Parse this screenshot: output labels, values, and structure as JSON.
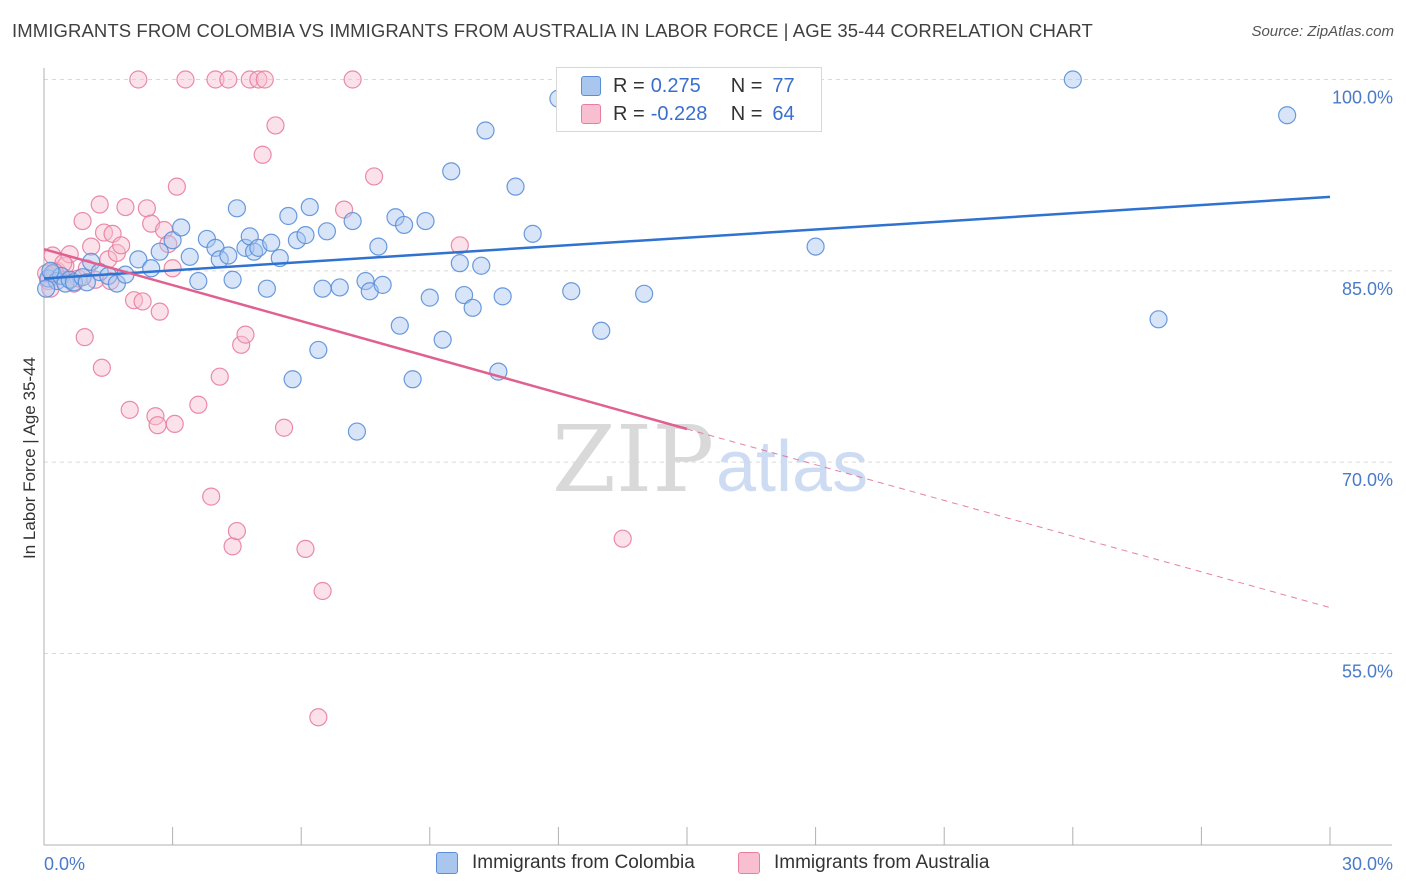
{
  "title": "IMMIGRANTS FROM COLOMBIA VS IMMIGRANTS FROM AUSTRALIA IN LABOR FORCE | AGE 35-44 CORRELATION CHART",
  "source": "Source: ZipAtlas.com",
  "watermark": {
    "zip": "ZIP",
    "atlas": "atlas"
  },
  "legend": {
    "rows": [
      {
        "r_label": "R =",
        "r_value": "0.275",
        "n_label": "N =",
        "n_value": "77"
      },
      {
        "r_label": "R =",
        "r_value": "-0.228",
        "n_label": "N =",
        "n_value": "64"
      }
    ]
  },
  "bottom_legend": [
    "Immigrants from Colombia",
    "Immigrants from Australia"
  ],
  "colors": {
    "blue_fill": "#a9c6ef",
    "blue_stroke": "#5a8fd8",
    "blue_line": "#2f72d0",
    "pink_fill": "#f7bfd0",
    "pink_stroke": "#e87ea0",
    "pink_line": "#e06090",
    "tick_text": "#4a7ac8",
    "grid": "#d9d9d9"
  },
  "chart_data": {
    "type": "scatter",
    "title": "IMMIGRANTS FROM COLOMBIA VS IMMIGRANTS FROM AUSTRALIA IN LABOR FORCE | AGE 35-44 CORRELATION CHART",
    "xlabel": "",
    "ylabel": "In Labor Force | Age 35-44",
    "xlim": [
      0,
      30
    ],
    "ylim": [
      40,
      101.5
    ],
    "x_ticks_labeled": [
      "0.0%",
      "30.0%"
    ],
    "y_ticks": [
      100,
      85,
      70,
      55
    ],
    "y_tick_labels": [
      "100.0%",
      "85.0%",
      "70.0%",
      "55.0%"
    ],
    "grid": true,
    "series": [
      {
        "name": "Immigrants from Colombia",
        "r": 0.275,
        "n": 77,
        "trend": {
          "x": [
            0,
            30
          ],
          "y": [
            84.4,
            90.8
          ]
        },
        "points": [
          [
            0.1,
            84.4
          ],
          [
            0.2,
            84.8
          ],
          [
            0.3,
            84.2
          ],
          [
            0.4,
            84.6
          ],
          [
            0.5,
            84.0
          ],
          [
            0.6,
            84.3
          ],
          [
            0.7,
            84.1
          ],
          [
            0.9,
            84.5
          ],
          [
            1.1,
            85.7
          ],
          [
            1.3,
            84.9
          ],
          [
            1.5,
            84.6
          ],
          [
            1.7,
            84.0
          ],
          [
            1.9,
            84.7
          ],
          [
            2.2,
            85.9
          ],
          [
            2.5,
            85.2
          ],
          [
            2.7,
            86.5
          ],
          [
            3.0,
            87.4
          ],
          [
            3.2,
            88.4
          ],
          [
            3.4,
            86.1
          ],
          [
            3.6,
            84.2
          ],
          [
            3.8,
            87.5
          ],
          [
            4.0,
            86.8
          ],
          [
            4.1,
            85.9
          ],
          [
            4.3,
            86.2
          ],
          [
            4.4,
            84.3
          ],
          [
            4.5,
            89.9
          ],
          [
            4.7,
            86.8
          ],
          [
            4.8,
            87.7
          ],
          [
            4.9,
            86.5
          ],
          [
            5.0,
            86.8
          ],
          [
            5.2,
            83.6
          ],
          [
            5.3,
            87.2
          ],
          [
            5.5,
            86.0
          ],
          [
            5.7,
            89.3
          ],
          [
            5.8,
            76.5
          ],
          [
            5.9,
            87.4
          ],
          [
            6.1,
            87.8
          ],
          [
            6.2,
            90.0
          ],
          [
            6.4,
            78.8
          ],
          [
            6.5,
            83.6
          ],
          [
            6.6,
            88.1
          ],
          [
            6.9,
            83.7
          ],
          [
            7.2,
            88.9
          ],
          [
            7.3,
            72.4
          ],
          [
            7.5,
            84.2
          ],
          [
            7.6,
            83.4
          ],
          [
            7.8,
            86.9
          ],
          [
            7.9,
            83.9
          ],
          [
            8.2,
            89.2
          ],
          [
            8.3,
            80.7
          ],
          [
            8.4,
            88.6
          ],
          [
            8.6,
            76.5
          ],
          [
            8.9,
            88.9
          ],
          [
            9.0,
            82.9
          ],
          [
            9.3,
            79.6
          ],
          [
            9.5,
            92.8
          ],
          [
            9.7,
            85.6
          ],
          [
            9.8,
            83.1
          ],
          [
            10.0,
            82.1
          ],
          [
            10.2,
            85.4
          ],
          [
            10.3,
            96.0
          ],
          [
            10.6,
            77.1
          ],
          [
            10.7,
            83.0
          ],
          [
            11.0,
            91.6
          ],
          [
            11.4,
            87.9
          ],
          [
            12.0,
            98.5
          ],
          [
            12.3,
            83.4
          ],
          [
            13.0,
            80.3
          ],
          [
            14.0,
            100.0
          ],
          [
            14.0,
            83.2
          ],
          [
            18.0,
            86.9
          ],
          [
            24.0,
            100.0
          ],
          [
            26.0,
            81.2
          ],
          [
            29.0,
            97.2
          ],
          [
            0.05,
            83.6
          ],
          [
            0.15,
            85.0
          ],
          [
            1.0,
            84.1
          ]
        ]
      },
      {
        "name": "Immigrants from Australia",
        "r": -0.228,
        "n": 64,
        "trend": {
          "x": [
            0,
            15
          ],
          "y": [
            86.7,
            72.6
          ]
        },
        "trend_dashed": {
          "x": [
            15,
            30
          ],
          "y": [
            72.6,
            58.6
          ]
        },
        "points": [
          [
            0.1,
            84.2
          ],
          [
            0.2,
            86.2
          ],
          [
            0.3,
            85.0
          ],
          [
            0.4,
            84.6
          ],
          [
            0.5,
            85.4
          ],
          [
            0.6,
            86.3
          ],
          [
            0.7,
            84.0
          ],
          [
            0.8,
            84.4
          ],
          [
            0.9,
            88.9
          ],
          [
            1.0,
            85.2
          ],
          [
            1.1,
            86.9
          ],
          [
            1.2,
            84.3
          ],
          [
            1.3,
            90.2
          ],
          [
            1.4,
            88.0
          ],
          [
            1.5,
            85.9
          ],
          [
            1.6,
            87.9
          ],
          [
            1.7,
            86.4
          ],
          [
            1.8,
            87.0
          ],
          [
            1.9,
            90.0
          ],
          [
            2.0,
            74.1
          ],
          [
            2.1,
            82.7
          ],
          [
            2.2,
            100.0
          ],
          [
            2.3,
            82.6
          ],
          [
            2.4,
            89.9
          ],
          [
            2.5,
            88.7
          ],
          [
            2.6,
            73.6
          ],
          [
            2.7,
            81.8
          ],
          [
            2.8,
            88.2
          ],
          [
            2.9,
            87.1
          ],
          [
            3.0,
            85.2
          ],
          [
            3.1,
            91.6
          ],
          [
            3.3,
            100.0
          ],
          [
            3.6,
            74.5
          ],
          [
            3.9,
            67.3
          ],
          [
            4.0,
            100.0
          ],
          [
            4.1,
            76.7
          ],
          [
            4.3,
            100.0
          ],
          [
            4.4,
            63.4
          ],
          [
            4.5,
            64.6
          ],
          [
            4.6,
            79.2
          ],
          [
            4.7,
            80.0
          ],
          [
            4.8,
            100.0
          ],
          [
            5.0,
            100.0
          ],
          [
            5.1,
            94.1
          ],
          [
            5.4,
            96.4
          ],
          [
            5.6,
            72.7
          ],
          [
            6.1,
            63.2
          ],
          [
            6.4,
            50.0
          ],
          [
            6.5,
            59.9
          ],
          [
            7.0,
            89.8
          ],
          [
            7.2,
            100.0
          ],
          [
            7.7,
            92.4
          ],
          [
            9.7,
            87.0
          ],
          [
            13.5,
            64.0
          ],
          [
            0.15,
            83.6
          ],
          [
            0.45,
            85.6
          ],
          [
            1.35,
            77.4
          ],
          [
            0.95,
            79.8
          ],
          [
            1.55,
            84.2
          ],
          [
            2.65,
            72.9
          ],
          [
            3.05,
            73.0
          ],
          [
            0.05,
            84.8
          ],
          [
            0.25,
            84.9
          ],
          [
            5.15,
            100.0
          ]
        ]
      }
    ]
  }
}
